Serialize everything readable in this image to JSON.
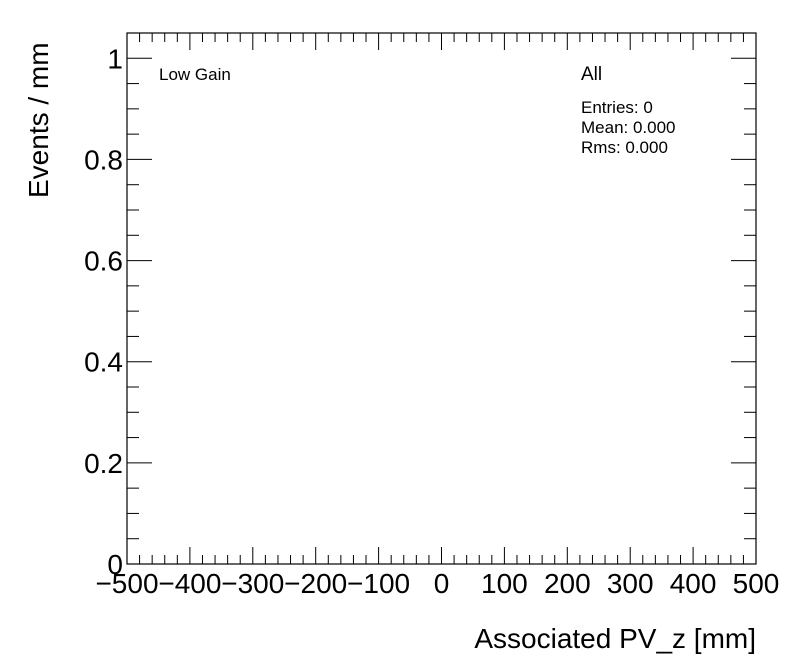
{
  "chart_data": {
    "type": "bar",
    "title": "",
    "xlabel": "Associated PV_z [mm]",
    "ylabel": "Events / mm",
    "xlim": [
      -500,
      500
    ],
    "ylim": [
      0,
      1.05
    ],
    "x_ticks": [
      -500,
      -400,
      -300,
      -200,
      -100,
      0,
      100,
      200,
      300,
      400,
      500
    ],
    "x_tick_labels": [
      "−500",
      "−400",
      "−300",
      "−200",
      "−100",
      "0",
      "100",
      "200",
      "300",
      "400",
      "500"
    ],
    "y_ticks": [
      0,
      0.2,
      0.4,
      0.6,
      0.8,
      1
    ],
    "y_tick_labels": [
      "0",
      "0.2",
      "0.4",
      "0.6",
      "0.8",
      "1"
    ],
    "series": [],
    "grid": false,
    "annotations": {
      "left_label": "Low Gain",
      "stats_title": "All",
      "entries": "Entries: 0",
      "mean": "Mean: 0.000",
      "rms": "Rms: 0.000"
    }
  }
}
